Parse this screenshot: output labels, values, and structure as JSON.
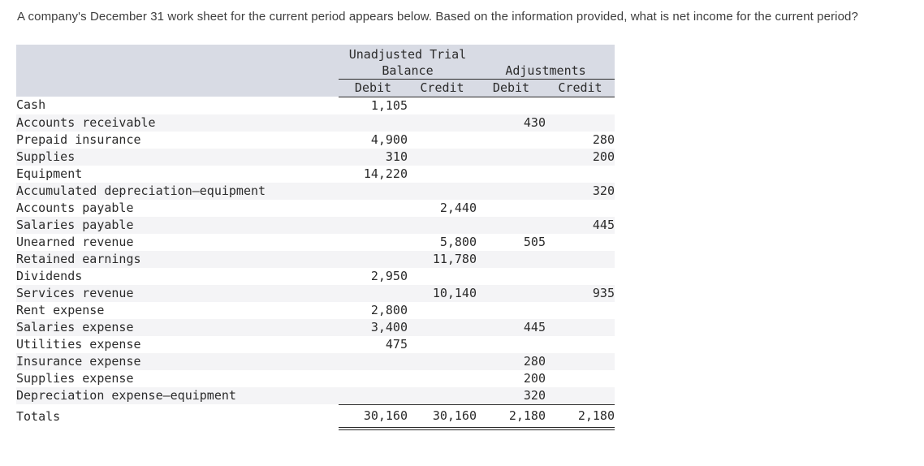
{
  "question": "A company's December 31 work sheet for the current period appears below. Based on the information provided, what is net income for the current period?",
  "worksheet": {
    "column_groups": [
      {
        "label": "Unadjusted Trial Balance",
        "columns": [
          "Debit",
          "Credit"
        ]
      },
      {
        "label": "Adjustments",
        "columns": [
          "Debit",
          "Credit"
        ]
      }
    ],
    "rows": [
      {
        "account": "Cash",
        "utb_debit": "1,105",
        "utb_credit": "",
        "adj_debit": "",
        "adj_credit": ""
      },
      {
        "account": "Accounts receivable",
        "utb_debit": "",
        "utb_credit": "",
        "adj_debit": "430",
        "adj_credit": ""
      },
      {
        "account": "Prepaid insurance",
        "utb_debit": "4,900",
        "utb_credit": "",
        "adj_debit": "",
        "adj_credit": "280"
      },
      {
        "account": "Supplies",
        "utb_debit": "310",
        "utb_credit": "",
        "adj_debit": "",
        "adj_credit": "200"
      },
      {
        "account": "Equipment",
        "utb_debit": "14,220",
        "utb_credit": "",
        "adj_debit": "",
        "adj_credit": ""
      },
      {
        "account": "Accumulated depreciation—equipment",
        "utb_debit": "",
        "utb_credit": "",
        "adj_debit": "",
        "adj_credit": "320"
      },
      {
        "account": "Accounts payable",
        "utb_debit": "",
        "utb_credit": "2,440",
        "adj_debit": "",
        "adj_credit": ""
      },
      {
        "account": "Salaries payable",
        "utb_debit": "",
        "utb_credit": "",
        "adj_debit": "",
        "adj_credit": "445"
      },
      {
        "account": "Unearned revenue",
        "utb_debit": "",
        "utb_credit": "5,800",
        "adj_debit": "505",
        "adj_credit": ""
      },
      {
        "account": "Retained earnings",
        "utb_debit": "",
        "utb_credit": "11,780",
        "adj_debit": "",
        "adj_credit": ""
      },
      {
        "account": "Dividends",
        "utb_debit": "2,950",
        "utb_credit": "",
        "adj_debit": "",
        "adj_credit": ""
      },
      {
        "account": "Services revenue",
        "utb_debit": "",
        "utb_credit": "10,140",
        "adj_debit": "",
        "adj_credit": "935"
      },
      {
        "account": "Rent expense",
        "utb_debit": "2,800",
        "utb_credit": "",
        "adj_debit": "",
        "adj_credit": ""
      },
      {
        "account": "Salaries expense",
        "utb_debit": "3,400",
        "utb_credit": "",
        "adj_debit": "445",
        "adj_credit": ""
      },
      {
        "account": "Utilities expense",
        "utb_debit": "475",
        "utb_credit": "",
        "adj_debit": "",
        "adj_credit": ""
      },
      {
        "account": "Insurance expense",
        "utb_debit": "",
        "utb_credit": "",
        "adj_debit": "280",
        "adj_credit": ""
      },
      {
        "account": "Supplies expense",
        "utb_debit": "",
        "utb_credit": "",
        "adj_debit": "200",
        "adj_credit": ""
      },
      {
        "account": "Depreciation expense—equipment",
        "utb_debit": "",
        "utb_credit": "",
        "adj_debit": "320",
        "adj_credit": ""
      }
    ],
    "totals": {
      "label": "Totals",
      "utb_debit": "30,160",
      "utb_credit": "30,160",
      "adj_debit": "2,180",
      "adj_credit": "2,180"
    }
  },
  "colors": {
    "header_bg": "#d8dbe4",
    "stripe_bg": "#f4f4f6",
    "rule": "#2a2a2a",
    "text": "#3d3d3d",
    "table_text": "#2b2b2b"
  }
}
